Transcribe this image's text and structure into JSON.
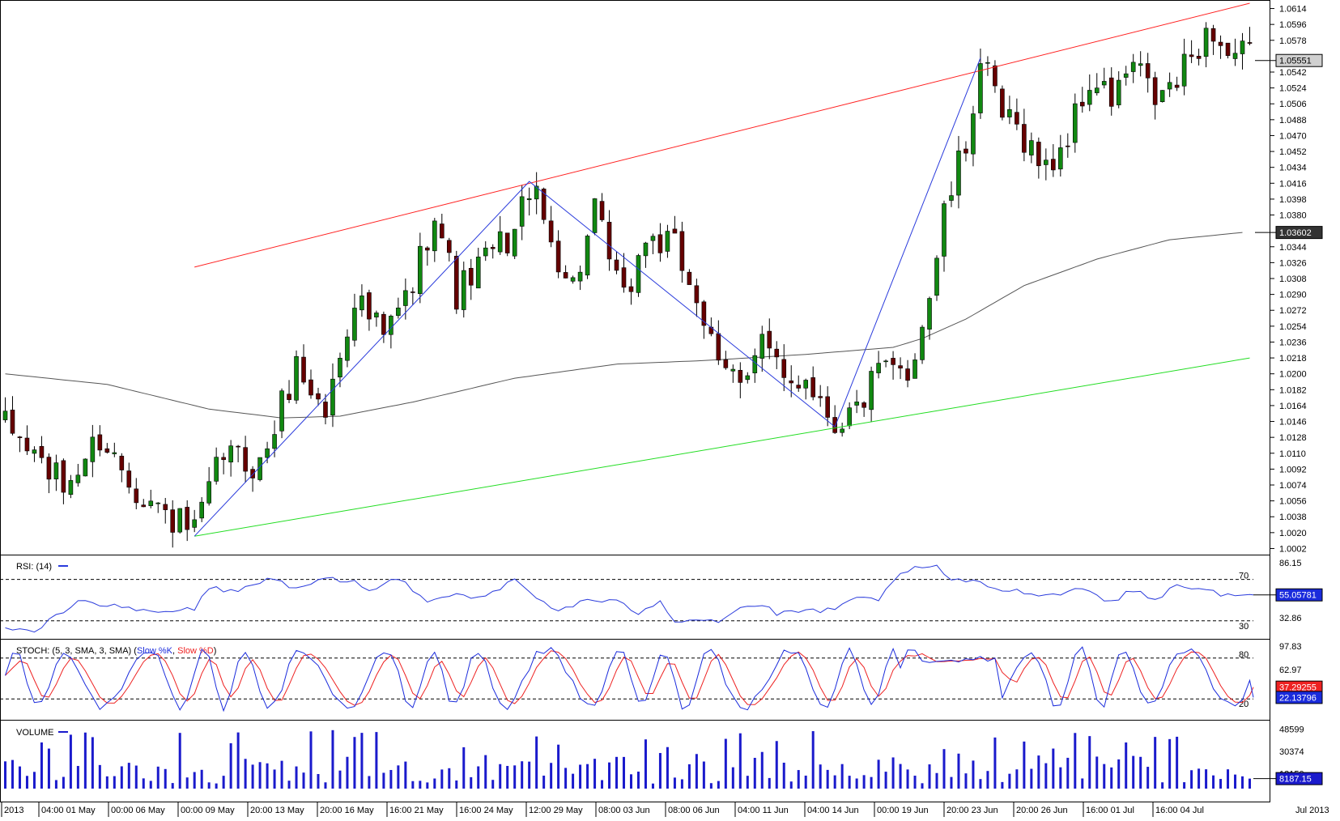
{
  "chart_data": {
    "type": "candlestick",
    "instrument_panels": [
      "price",
      "RSI",
      "STOCH",
      "VOLUME"
    ],
    "colors": {
      "bull_candle": "#118811",
      "bear_candle": "#660000",
      "resistance_line": "#ff2020",
      "support_line": "#22dd22",
      "zigzag": "#2a3bdc",
      "moving_average": "#555555",
      "rsi_line": "#2a3bdc",
      "stoch_k": "#1a2bdc",
      "stoch_d": "#ee2222",
      "volume_bar": "#1a1acc",
      "grid_dash": "#000000"
    },
    "price_axis": {
      "ticks": [
        "1.0614",
        "1.0596",
        "1.0578",
        "1.0542",
        "1.0524",
        "1.0506",
        "1.0488",
        "1.0470",
        "1.0452",
        "1.0434",
        "1.0416",
        "1.0398",
        "1.0380",
        "1.0344",
        "1.0326",
        "1.0308",
        "1.0290",
        "1.0272",
        "1.0254",
        "1.0236",
        "1.0218",
        "1.0200",
        "1.0182",
        "1.0164",
        "1.0146",
        "1.0128",
        "1.0110",
        "1.0092",
        "1.0074",
        "1.0056",
        "1.0038",
        "1.0020",
        "1.0002"
      ],
      "ylim": [
        0.9996,
        1.062
      ],
      "current_price_label": "1.05551",
      "current_price": 1.05551,
      "ma_label": "1.03602",
      "ma_value": 1.03602
    },
    "x_axis": {
      "labels": [
        "2013",
        "04:00 01 May",
        "00:00 06 May",
        "00:00 09 May",
        "20:00 13 May",
        "20:00 16 May",
        "16:00 21 May",
        "16:00 24 May",
        "12:00 29 May",
        "08:00 03 Jun",
        "08:00 06 Jun",
        "04:00 11 Jun",
        "04:00 14 Jun",
        "00:00 19 Jun",
        "20:00 23 Jun",
        "20:00 26 Jun",
        "16:00 01 Jul",
        "16:00 04 Jul"
      ],
      "right_label": "Jul 2013"
    },
    "trend_lines": [
      {
        "name": "resistance",
        "from": [
          26,
          1.0321
        ],
        "to": [
          171,
          1.062
        ]
      },
      {
        "name": "support",
        "from": [
          26,
          1.0016
        ],
        "to": [
          171,
          1.0218
        ]
      }
    ],
    "zigzag": [
      [
        26,
        1.0016
      ],
      [
        72,
        1.0416
      ],
      [
        114,
        1.0138
      ],
      [
        134,
        1.0558
      ],
      [
        149,
        1.0558
      ]
    ],
    "zigzag_points": [
      [
        26,
        1.0016
      ],
      [
        72,
        1.0418
      ],
      [
        114,
        1.014
      ],
      [
        134,
        1.0558
      ]
    ],
    "ma_points": [
      [
        0,
        1.02
      ],
      [
        14,
        1.0188
      ],
      [
        28,
        1.016
      ],
      [
        38,
        1.015
      ],
      [
        46,
        1.0152
      ],
      [
        56,
        1.0168
      ],
      [
        70,
        1.0195
      ],
      [
        84,
        1.0211
      ],
      [
        96,
        1.0215
      ],
      [
        110,
        1.0222
      ],
      [
        122,
        1.023
      ],
      [
        126,
        1.024
      ],
      [
        132,
        1.0262
      ],
      [
        140,
        1.03
      ],
      [
        150,
        1.033
      ],
      [
        160,
        1.0352
      ],
      [
        170,
        1.03602
      ]
    ],
    "price_anchors": [
      [
        0,
        1.014
      ],
      [
        4,
        1.011
      ],
      [
        8,
        1.007
      ],
      [
        13,
        1.0128
      ],
      [
        18,
        1.0072
      ],
      [
        22,
        1.004
      ],
      [
        26,
        1.0018
      ],
      [
        30,
        1.011
      ],
      [
        35,
        1.0095
      ],
      [
        40,
        1.021
      ],
      [
        44,
        1.0155
      ],
      [
        48,
        1.029
      ],
      [
        52,
        1.024
      ],
      [
        56,
        1.03
      ],
      [
        59,
        1.039
      ],
      [
        62,
        1.029
      ],
      [
        66,
        1.033
      ],
      [
        70,
        1.036
      ],
      [
        72,
        1.0415
      ],
      [
        75,
        1.035
      ],
      [
        78,
        1.03
      ],
      [
        81,
        1.038
      ],
      [
        85,
        1.028
      ],
      [
        88,
        1.0355
      ],
      [
        92,
        1.034
      ],
      [
        95,
        1.029
      ],
      [
        98,
        1.02
      ],
      [
        101,
        1.02
      ],
      [
        104,
        1.024
      ],
      [
        107,
        1.0185
      ],
      [
        110,
        1.02
      ],
      [
        114,
        1.0145
      ],
      [
        117,
        1.016
      ],
      [
        120,
        1.02
      ],
      [
        124,
        1.02
      ],
      [
        127,
        1.029
      ],
      [
        129,
        1.038
      ],
      [
        132,
        1.046
      ],
      [
        134,
        1.0555
      ],
      [
        137,
        1.049
      ],
      [
        140,
        1.047
      ],
      [
        143,
        1.043
      ],
      [
        146,
        1.047
      ],
      [
        149,
        1.053
      ],
      [
        152,
        1.051
      ],
      [
        155,
        1.055
      ],
      [
        158,
        1.051
      ],
      [
        161,
        1.053
      ],
      [
        164,
        1.0575
      ],
      [
        166,
        1.059
      ],
      [
        168,
        1.056
      ]
    ],
    "rsi": {
      "label": "RSI: (14)",
      "period": 14,
      "levels": [
        70,
        30
      ],
      "level_labels": [
        "70",
        "30"
      ],
      "axis_ticks": [
        "86.15",
        "32.86"
      ],
      "ylim": [
        15,
        90
      ],
      "current_label": "55.05781",
      "current": 55.05781,
      "anchors": [
        [
          0,
          22
        ],
        [
          4,
          20
        ],
        [
          7,
          35
        ],
        [
          10,
          50
        ],
        [
          14,
          45
        ],
        [
          18,
          40
        ],
        [
          22,
          38
        ],
        [
          26,
          42
        ],
        [
          28,
          62
        ],
        [
          32,
          58
        ],
        [
          36,
          72
        ],
        [
          40,
          60
        ],
        [
          44,
          70
        ],
        [
          48,
          68
        ],
        [
          50,
          58
        ],
        [
          54,
          72
        ],
        [
          58,
          50
        ],
        [
          62,
          56
        ],
        [
          66,
          52
        ],
        [
          70,
          70
        ],
        [
          73,
          52
        ],
        [
          76,
          40
        ],
        [
          80,
          50
        ],
        [
          84,
          48
        ],
        [
          87,
          38
        ],
        [
          90,
          50
        ],
        [
          92,
          30
        ],
        [
          95,
          32
        ],
        [
          98,
          30
        ],
        [
          101,
          42
        ],
        [
          104,
          46
        ],
        [
          106,
          36
        ],
        [
          110,
          40
        ],
        [
          114,
          40
        ],
        [
          117,
          52
        ],
        [
          120,
          50
        ],
        [
          122,
          70
        ],
        [
          125,
          80
        ],
        [
          128,
          82
        ],
        [
          130,
          70
        ],
        [
          134,
          66
        ],
        [
          137,
          60
        ],
        [
          140,
          58
        ],
        [
          144,
          55
        ],
        [
          148,
          62
        ],
        [
          152,
          48
        ],
        [
          155,
          60
        ],
        [
          158,
          50
        ],
        [
          161,
          66
        ],
        [
          164,
          60
        ],
        [
          168,
          55
        ]
      ]
    },
    "stoch": {
      "label_prefix": "STOCH: (5, 3, SMA, 3, SMA)",
      "legend": [
        "Slow %K",
        "Slow %D"
      ],
      "levels": [
        80,
        20
      ],
      "level_labels": [
        "80",
        "20"
      ],
      "axis_ticks": [
        "97.83",
        "62.97"
      ],
      "ylim": [
        0,
        100
      ],
      "k_label": "22.13796",
      "k_current": 22.13796,
      "d_label": "37.29255",
      "d_current": 37.29255
    },
    "volume": {
      "label": "VOLUME",
      "axis_ticks": [
        "48599",
        "30374"
      ],
      "hidden_tick": "12150",
      "ylim": [
        0,
        53000
      ],
      "current_label": "8187.15",
      "current": 8187.15
    },
    "n_bars": 172
  }
}
